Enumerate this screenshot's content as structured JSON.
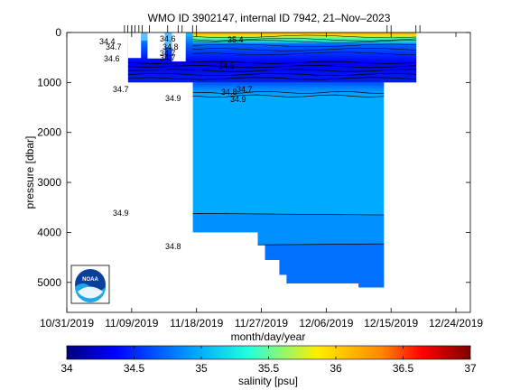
{
  "chart_data": {
    "type": "heatmap",
    "title": "WMO ID 3902147, internal ID 7942, 21–Nov–2023",
    "xlabel": "month/day/year",
    "ylabel": "pressure [dbar]",
    "xlim": [
      "10/31/2019",
      "12/26/2019"
    ],
    "ylim": [
      0,
      5600
    ],
    "y_reversed": true,
    "grid": false,
    "x_ticks": [
      "10/31/2019",
      "11/09/2019",
      "11/18/2019",
      "11/27/2019",
      "12/06/2019",
      "12/15/2019",
      "12/24/2019"
    ],
    "y_ticks": [
      "0",
      "1000",
      "2000",
      "3000",
      "4000",
      "5000"
    ],
    "colorbar": {
      "label": "salinity [psu]",
      "min": 34,
      "max": 37,
      "ticks": [
        "34",
        "34.5",
        "35",
        "35.5",
        "36",
        "36.5",
        "37"
      ],
      "colors": [
        "#00007f",
        "#0000ff",
        "#00a0ff",
        "#22ffdd",
        "#ffee00",
        "#ff8800",
        "#ff0000",
        "#7f0000"
      ]
    },
    "profile_dates": [
      "11/08/2019",
      "11/08/2019",
      "11/09/2019",
      "11/09/2019",
      "11/09/2019",
      "11/10/2019",
      "11/10/2019",
      "11/11/2019",
      "11/14/2019",
      "11/15/2019",
      "11/16/2019",
      "11/17/2019",
      "11/18/2019",
      "12/14/2019",
      "12/15/2019",
      "12/18/2019",
      "12/19/2019"
    ],
    "series": [
      {
        "values": [
          {
            "day": 8.5,
            "max_pressure": 1000
          },
          {
            "day": 11.5,
            "max_pressure": 1000
          },
          {
            "day": 13.5,
            "max_pressure": 1000
          },
          {
            "day": 16.5,
            "max_pressure": 1000
          },
          {
            "day": 17.5,
            "max_pressure": 4000
          },
          {
            "day": 26.5,
            "max_pressure": 4250
          },
          {
            "day": 27.5,
            "max_pressure": 4550
          },
          {
            "day": 29.5,
            "max_pressure": 4850
          },
          {
            "day": 30.5,
            "max_pressure": 5000
          },
          {
            "day": 40.5,
            "max_pressure": 5020
          },
          {
            "day": 44,
            "max_pressure": 5100
          },
          {
            "day": 44,
            "max_pressure": 1000
          },
          {
            "day": 48.5,
            "max_pressure": 1000
          }
        ]
      }
    ],
    "contour_labels": [
      "34.4",
      "34.6",
      "34.8",
      "34.7",
      "34.7",
      "34.7",
      "34.6",
      "35.4",
      "34.5",
      "34.7",
      "34.8",
      "34.9",
      "34.9",
      "34.7",
      "34.9",
      "34.8"
    ],
    "logo": "NOAA"
  }
}
